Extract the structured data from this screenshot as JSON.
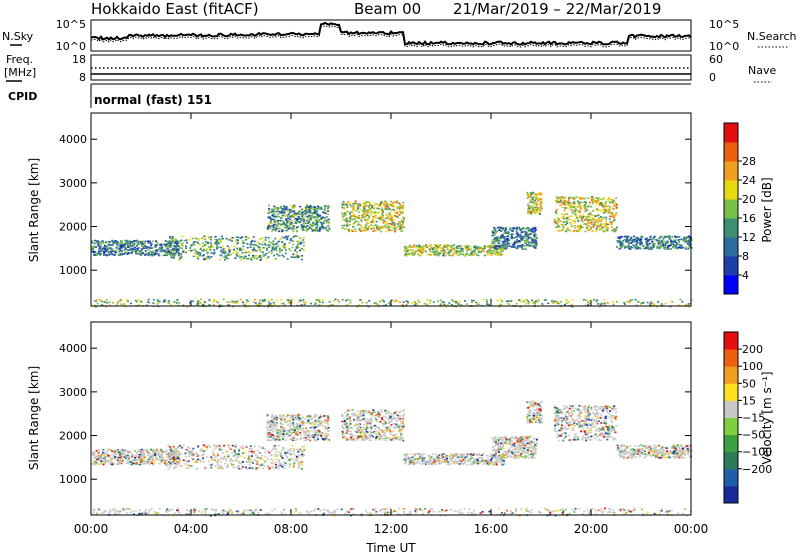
{
  "header": {
    "station": "Hokkaido East (fitACF)",
    "beam": "Beam 00",
    "date_range": "21/Mar/2019 – 22/Mar/2019"
  },
  "noise_panel": {
    "left_label": "N.Sky",
    "right_label": "N.Search",
    "left_ticks": [
      "10^5",
      "10^0"
    ],
    "right_ticks": [
      "10^5",
      "10^0"
    ]
  },
  "freq_panel": {
    "left_label_1": "Freq.",
    "left_label_2": "[MHz]",
    "right_label": "Nave",
    "left_ticks": [
      "18",
      "8"
    ],
    "right_ticks": [
      "60",
      "0"
    ]
  },
  "cpid_panel": {
    "label": "CPID",
    "text": "normal (fast) 151"
  },
  "colors": {
    "power_scale": [
      "#0000ff",
      "#1f3fa8",
      "#2f6b9e",
      "#3c8f72",
      "#78c04a",
      "#e8d810",
      "#f0a020",
      "#ee6010",
      "#e21010"
    ],
    "velocity_scale": [
      "#1a2a9a",
      "#1f5faa",
      "#2e7a5a",
      "#3aa040",
      "#7ed040",
      "#c8c8c8",
      "#ffe020",
      "#f0a020",
      "#ee6010",
      "#e21010"
    ]
  },
  "chart_data": [
    {
      "type": "heatmap",
      "name": "power",
      "ylabel": "Slant Range [km]",
      "ylim": [
        180,
        4600
      ],
      "yticks": [
        1000,
        2000,
        3000,
        4000
      ],
      "xlim": [
        0,
        24
      ],
      "colorbar_label": "Power [dB]",
      "colorbar_range": [
        0,
        32
      ],
      "colorbar_ticks": [
        "4",
        "8",
        "12",
        "16",
        "20",
        "24",
        "28"
      ],
      "echo_regions": [
        {
          "x": [
            0.0,
            3.5
          ],
          "y": [
            1350,
            1700
          ],
          "level": 0.3
        },
        {
          "x": [
            3.0,
            8.5
          ],
          "y": [
            1250,
            1800
          ],
          "level": 0.4
        },
        {
          "x": [
            7.0,
            9.5
          ],
          "y": [
            1900,
            2500
          ],
          "level": 0.35
        },
        {
          "x": [
            10.0,
            12.5
          ],
          "y": [
            1900,
            2600
          ],
          "level": 0.6
        },
        {
          "x": [
            12.5,
            16.5
          ],
          "y": [
            1350,
            1600
          ],
          "level": 0.55
        },
        {
          "x": [
            16.0,
            17.8
          ],
          "y": [
            1500,
            2000
          ],
          "level": 0.3
        },
        {
          "x": [
            17.4,
            18.0
          ],
          "y": [
            2300,
            2800
          ],
          "level": 0.55
        },
        {
          "x": [
            18.5,
            21.0
          ],
          "y": [
            1900,
            2700
          ],
          "level": 0.6
        },
        {
          "x": [
            21.0,
            24.0
          ],
          "y": [
            1500,
            1800
          ],
          "level": 0.3
        },
        {
          "x": [
            0.0,
            24.0
          ],
          "y": [
            180,
            350
          ],
          "level": 0.5
        }
      ]
    },
    {
      "type": "heatmap",
      "name": "velocity",
      "ylabel": "Slant Range [km]",
      "xlabel": "Time UT",
      "ylim": [
        180,
        4600
      ],
      "yticks": [
        1000,
        2000,
        3000,
        4000
      ],
      "xlim": [
        0,
        24
      ],
      "xticks": [
        "00:00",
        "04:00",
        "08:00",
        "12:00",
        "16:00",
        "20:00",
        "00:00"
      ],
      "colorbar_label": "Velocity [m s⁻¹]",
      "colorbar_ticks": [
        "200",
        "100",
        "50",
        "15",
        "−15",
        "−50",
        "−100",
        "−200"
      ],
      "echo_regions": [
        {
          "x": [
            0.0,
            3.5
          ],
          "y": [
            1350,
            1700
          ],
          "level": 0.5
        },
        {
          "x": [
            3.0,
            8.5
          ],
          "y": [
            1250,
            1800
          ],
          "level": 0.5
        },
        {
          "x": [
            7.0,
            9.5
          ],
          "y": [
            1900,
            2500
          ],
          "level": 0.5
        },
        {
          "x": [
            10.0,
            12.5
          ],
          "y": [
            1900,
            2600
          ],
          "level": 0.5
        },
        {
          "x": [
            12.5,
            16.5
          ],
          "y": [
            1350,
            1600
          ],
          "level": 0.5
        },
        {
          "x": [
            16.0,
            17.8
          ],
          "y": [
            1500,
            2000
          ],
          "level": 0.5
        },
        {
          "x": [
            17.4,
            18.0
          ],
          "y": [
            2300,
            2800
          ],
          "level": 0.5
        },
        {
          "x": [
            18.5,
            21.0
          ],
          "y": [
            1900,
            2700
          ],
          "level": 0.5
        },
        {
          "x": [
            21.0,
            24.0
          ],
          "y": [
            1500,
            1800
          ],
          "level": 0.5
        },
        {
          "x": [
            0.0,
            24.0
          ],
          "y": [
            180,
            350
          ],
          "level": 0.5
        }
      ]
    }
  ]
}
